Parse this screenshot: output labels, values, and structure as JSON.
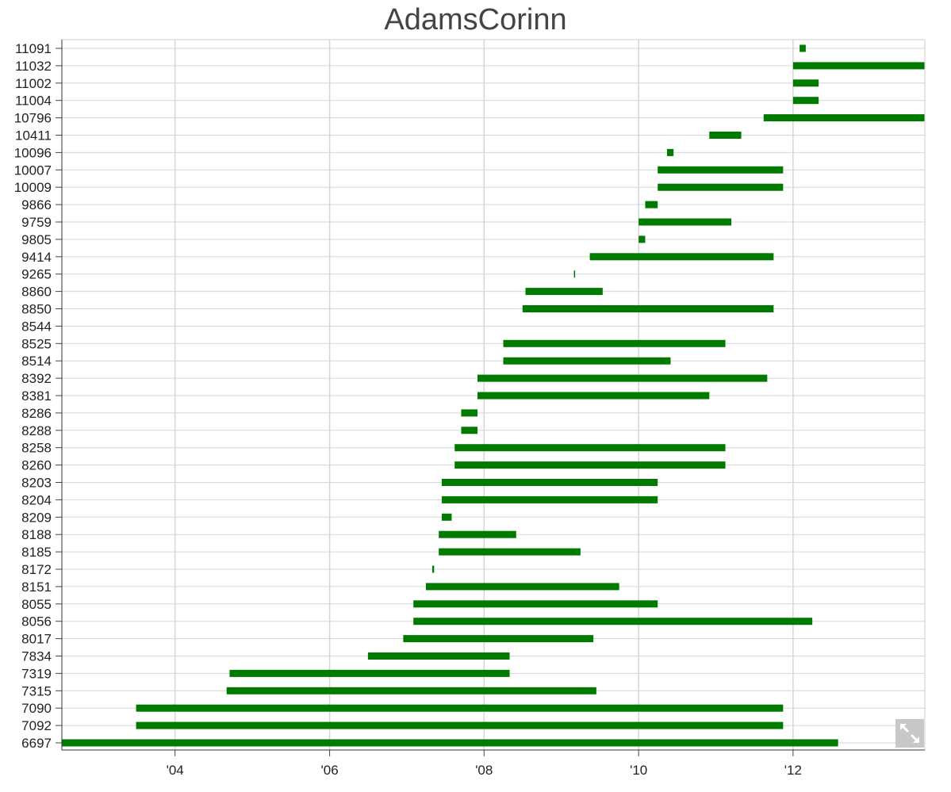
{
  "chart_data": {
    "type": "bar",
    "orientation": "horizontal",
    "title": "AdamsCorinn",
    "xlabel": "",
    "ylabel": "",
    "x_axis": {
      "type": "time",
      "range": [
        "2002-07-15",
        "2013-09-15"
      ],
      "ticks": [
        {
          "value": "2004-01-01",
          "label": "'04"
        },
        {
          "value": "2006-01-01",
          "label": "'06"
        },
        {
          "value": "2008-01-01",
          "label": "'08"
        },
        {
          "value": "2010-01-01",
          "label": "'10"
        },
        {
          "value": "2012-01-01",
          "label": "'12"
        }
      ]
    },
    "grid": true,
    "bar_color": "#007b00",
    "series": [
      {
        "label": "11091",
        "start": "2012-02-01",
        "end": "2012-03-01"
      },
      {
        "label": "11032",
        "start": "2012-01-01",
        "end": "2013-09-15"
      },
      {
        "label": "11002",
        "start": "2012-01-01",
        "end": "2012-05-01"
      },
      {
        "label": "11004",
        "start": "2012-01-01",
        "end": "2012-05-01"
      },
      {
        "label": "10796",
        "start": "2011-08-15",
        "end": "2013-09-15"
      },
      {
        "label": "10411",
        "start": "2010-12-01",
        "end": "2011-05-01"
      },
      {
        "label": "10096",
        "start": "2010-05-15",
        "end": "2010-06-15"
      },
      {
        "label": "10007",
        "start": "2010-04-01",
        "end": "2011-11-15"
      },
      {
        "label": "10009",
        "start": "2010-04-01",
        "end": "2011-11-15"
      },
      {
        "label": "9866",
        "start": "2010-02-01",
        "end": "2010-04-01"
      },
      {
        "label": "9759",
        "start": "2010-01-01",
        "end": "2011-03-15"
      },
      {
        "label": "9805",
        "start": "2010-01-01",
        "end": "2010-02-01"
      },
      {
        "label": "9414",
        "start": "2009-05-15",
        "end": "2011-10-01"
      },
      {
        "label": "9265",
        "start": "2009-03-01",
        "end": "2009-03-05"
      },
      {
        "label": "8860",
        "start": "2008-07-15",
        "end": "2009-07-15"
      },
      {
        "label": "8850",
        "start": "2008-07-01",
        "end": "2011-10-01"
      },
      {
        "label": "8544",
        "start": "",
        "end": ""
      },
      {
        "label": "8525",
        "start": "2008-04-01",
        "end": "2011-02-15"
      },
      {
        "label": "8514",
        "start": "2008-04-01",
        "end": "2010-06-01"
      },
      {
        "label": "8392",
        "start": "2007-12-01",
        "end": "2011-09-01"
      },
      {
        "label": "8381",
        "start": "2007-12-01",
        "end": "2010-12-01"
      },
      {
        "label": "8286",
        "start": "2007-09-15",
        "end": "2007-12-01"
      },
      {
        "label": "8288",
        "start": "2007-09-15",
        "end": "2007-12-01"
      },
      {
        "label": "8258",
        "start": "2007-08-15",
        "end": "2011-02-15"
      },
      {
        "label": "8260",
        "start": "2007-08-15",
        "end": "2011-02-15"
      },
      {
        "label": "8203",
        "start": "2007-06-15",
        "end": "2010-04-01"
      },
      {
        "label": "8204",
        "start": "2007-06-15",
        "end": "2010-04-01"
      },
      {
        "label": "8209",
        "start": "2007-06-15",
        "end": "2007-08-01"
      },
      {
        "label": "8188",
        "start": "2007-06-01",
        "end": "2008-06-01"
      },
      {
        "label": "8185",
        "start": "2007-06-01",
        "end": "2009-04-01"
      },
      {
        "label": "8172",
        "start": "2007-05-01",
        "end": "2007-05-10"
      },
      {
        "label": "8151",
        "start": "2007-04-01",
        "end": "2009-10-01"
      },
      {
        "label": "8055",
        "start": "2007-02-01",
        "end": "2010-04-01"
      },
      {
        "label": "8056",
        "start": "2007-02-01",
        "end": "2012-04-01"
      },
      {
        "label": "8017",
        "start": "2006-12-15",
        "end": "2009-06-01"
      },
      {
        "label": "7834",
        "start": "2006-07-01",
        "end": "2008-05-01"
      },
      {
        "label": "7319",
        "start": "2004-09-15",
        "end": "2008-05-01"
      },
      {
        "label": "7315",
        "start": "2004-09-01",
        "end": "2009-06-15"
      },
      {
        "label": "7090",
        "start": "2003-07-01",
        "end": "2011-11-15"
      },
      {
        "label": "7092",
        "start": "2003-07-01",
        "end": "2011-11-15"
      },
      {
        "label": "6697",
        "start": "2002-07-15",
        "end": "2012-08-01"
      }
    ]
  }
}
